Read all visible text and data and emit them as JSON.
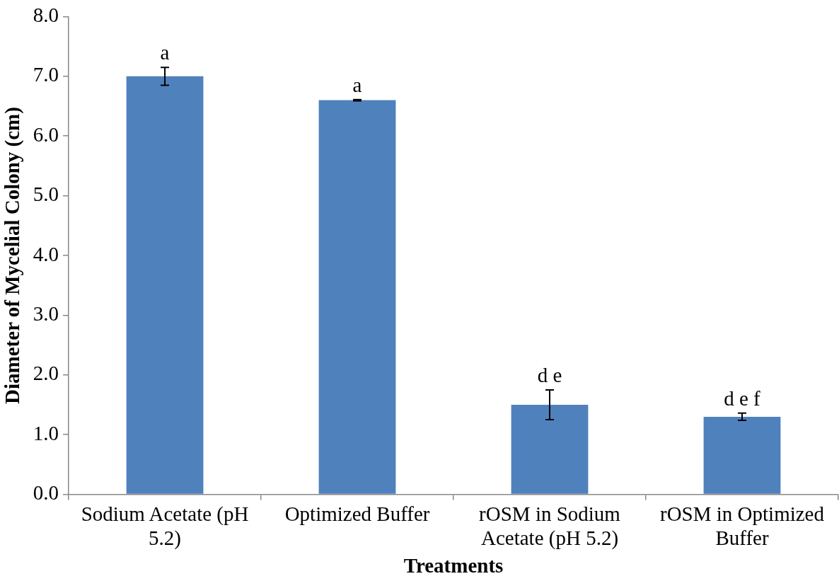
{
  "chart_data": {
    "type": "bar",
    "xlabel": "Treatments",
    "ylabel": "Diameter of Mycelial Colony (cm)",
    "categories": [
      "Sodium Acetate (pH 5.2)",
      "Optimized Buffer",
      "rOSM in Sodium Acetate (pH 5.2)",
      "rOSM in Optimized Buffer"
    ],
    "values": [
      7.0,
      6.6,
      1.5,
      1.3
    ],
    "errors": [
      0.15,
      0.01,
      0.25,
      0.06
    ],
    "color": "#4f81bd",
    "ylim": [
      0,
      8
    ],
    "yticks": [
      {
        "value": 0,
        "label": "0.0"
      },
      {
        "value": 1,
        "label": "1.0"
      },
      {
        "value": 2,
        "label": "2.0"
      },
      {
        "value": 3,
        "label": "3.0"
      },
      {
        "value": 4,
        "label": "4.0"
      },
      {
        "value": 5,
        "label": "5.0"
      },
      {
        "value": 6,
        "label": "6.0"
      },
      {
        "value": 7,
        "label": "7.0"
      },
      {
        "value": 8,
        "label": "8.0"
      }
    ],
    "annotations": [
      {
        "text": "a",
        "x": "Sodium Acetate (pH 5.2)",
        "y": 7.15
      },
      {
        "text": "a",
        "x": "Optimized Buffer",
        "y": 6.61
      },
      {
        "text": "d e",
        "x": "rOSM in Sodium Acetate (pH 5.2)",
        "y": 1.75
      },
      {
        "text": "d e f",
        "x": "rOSM in Optimized Buffer",
        "y": 1.36
      }
    ],
    "grid": false,
    "legend": false
  }
}
